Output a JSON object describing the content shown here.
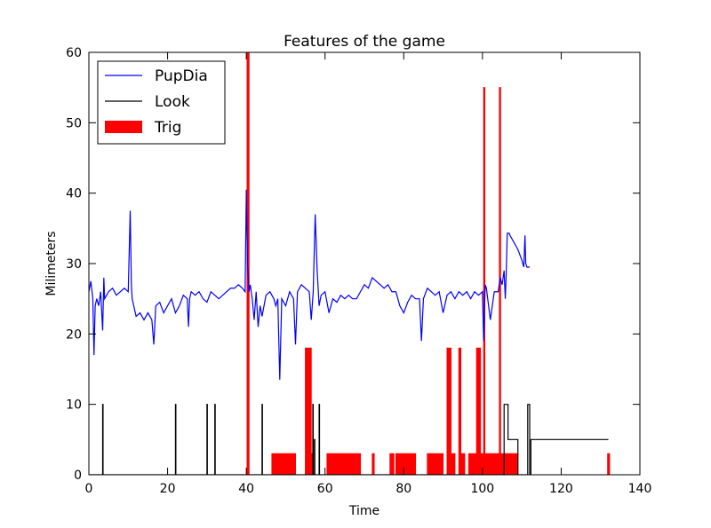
{
  "chart_data": {
    "type": "line",
    "title": "Features of the game",
    "x_label": "Time",
    "y_label": "Milimeters",
    "xlim": [
      0,
      140
    ],
    "ylim": [
      0,
      60
    ],
    "xticks": [
      0,
      20,
      40,
      60,
      80,
      100,
      120,
      140
    ],
    "yticks": [
      0,
      10,
      20,
      30,
      40,
      50,
      60
    ],
    "legend": "upper left",
    "series": [
      {
        "name": "PupDia",
        "color": "#0000ff",
        "style": "line",
        "x": [
          0,
          0.5,
          1,
          1.3,
          1.6,
          2,
          2.5,
          3,
          3.5,
          3.8,
          4,
          5,
          6,
          7,
          8,
          9,
          10,
          10.5,
          10.8,
          11,
          12,
          13,
          14,
          15,
          16,
          16.5,
          17,
          18,
          19,
          20,
          21,
          22,
          23,
          24,
          25,
          25.3,
          25.6,
          26,
          27,
          28,
          29,
          30,
          31,
          32,
          33,
          34,
          35,
          36,
          37,
          38,
          39,
          39.7,
          40,
          40.3,
          40.7,
          41,
          41.5,
          42,
          42.5,
          43,
          43.5,
          44,
          45,
          46,
          47,
          47.5,
          48,
          48.5,
          49,
          50,
          51,
          52,
          52.5,
          53,
          54,
          55,
          56,
          56.5,
          57,
          57.5,
          58,
          58.5,
          59,
          60,
          61,
          62,
          63,
          64,
          65,
          66,
          67,
          68,
          69,
          70,
          71,
          72,
          73,
          74,
          75,
          76,
          77,
          78,
          79,
          80,
          81,
          82,
          83,
          84,
          84.5,
          85,
          86,
          87,
          88,
          89,
          90,
          91,
          92,
          93,
          94,
          95,
          96,
          97,
          98,
          99,
          100,
          100.3,
          100.7,
          101,
          102,
          103,
          104,
          104.5,
          105,
          105.5,
          105.8,
          106,
          106.3,
          106.8,
          107,
          108,
          109,
          110,
          110.5,
          110.8,
          111,
          111.3,
          112
        ],
        "values": [
          26,
          27.5,
          25,
          17,
          24,
          25,
          24,
          26,
          20.5,
          28,
          25,
          26,
          26.5,
          25.5,
          26,
          26.5,
          26,
          37.5,
          27,
          25,
          22.5,
          23,
          22,
          23,
          22,
          18.5,
          24,
          24.5,
          23,
          24,
          25,
          23,
          24,
          25.5,
          25,
          21,
          25,
          26,
          25.5,
          26,
          25,
          24.5,
          26,
          25.5,
          25,
          25.5,
          26,
          26.5,
          26.5,
          27,
          26.5,
          26,
          40.5,
          30,
          26,
          27,
          25,
          22,
          26,
          21,
          24,
          22.5,
          25.5,
          26,
          25,
          24,
          25,
          13.5,
          25,
          24,
          26,
          25,
          18.5,
          26,
          27,
          26.5,
          26,
          22,
          26,
          37,
          29,
          24,
          25.5,
          26,
          23,
          25,
          24.5,
          25.5,
          25,
          25.5,
          25,
          25,
          26,
          27,
          26.5,
          28,
          27.5,
          27,
          26.5,
          27,
          26,
          26,
          24,
          23,
          24.5,
          25.5,
          25,
          25,
          19,
          25,
          26.5,
          26,
          25.5,
          26,
          23,
          25.5,
          26,
          25,
          26,
          25.5,
          26,
          25,
          26,
          25.5,
          26,
          19,
          27,
          26.5,
          22,
          26,
          26,
          28,
          27,
          29,
          25,
          28,
          34.3,
          34.3,
          34,
          33,
          32,
          30.5,
          29.5,
          34,
          30,
          29.5,
          29.5
        ]
      },
      {
        "name": "Look",
        "color": "#000000",
        "style": "line",
        "x": [
          0,
          3.5,
          3.5,
          3.6,
          3.6,
          22,
          22,
          22.1,
          22.1,
          30,
          30,
          30.1,
          30.1,
          32,
          32,
          32.1,
          32.1,
          44,
          44,
          44.1,
          44.1,
          56.9,
          56.9,
          57,
          57,
          57.3,
          57.3,
          57.4,
          57.4,
          58.5,
          58.5,
          58.6,
          58.6,
          105.5,
          105.5,
          106.5,
          106.5,
          109,
          109,
          111.5,
          111.5,
          112,
          112,
          112.3,
          112.3,
          132
        ],
        "values": [
          0,
          0,
          10,
          10,
          0,
          0,
          10,
          10,
          0,
          0,
          10,
          10,
          0,
          0,
          10,
          10,
          0,
          0,
          10,
          10,
          0,
          0,
          10,
          10,
          0,
          0,
          5,
          5,
          0,
          0,
          10,
          10,
          0,
          0,
          10,
          10,
          5,
          5,
          0,
          0,
          10,
          10,
          0,
          0,
          5,
          5
        ]
      },
      {
        "name": "Trig",
        "color": "#ff0000",
        "style": "area",
        "x": [
          0,
          40.2,
          40.2,
          40.7,
          40.7,
          46.5,
          46.5,
          52.5,
          52.5,
          55,
          55,
          56.5,
          56.5,
          57,
          57,
          60.5,
          60.5,
          69,
          69,
          72,
          72,
          72.5,
          72.5,
          76.5,
          76.5,
          77.5,
          77.5,
          78,
          78,
          83,
          83,
          86,
          86,
          90,
          90,
          91,
          91,
          92,
          92,
          93,
          93,
          94,
          94,
          94.5,
          94.5,
          95.5,
          95.5,
          96.5,
          96.5,
          98.5,
          98.5,
          99.5,
          99.5,
          100.3,
          100.3,
          100.6,
          100.6,
          104.3,
          104.3,
          104.6,
          104.6,
          109,
          109,
          131.8,
          131.8,
          132.3,
          132.3
        ],
        "values": [
          0,
          0,
          60,
          60,
          0,
          0,
          3,
          3,
          0,
          0,
          18,
          18,
          3,
          3,
          0,
          0,
          3,
          3,
          0,
          0,
          3,
          3,
          0,
          0,
          3,
          3,
          0,
          0,
          3,
          3,
          0,
          0,
          3,
          3,
          0,
          0,
          18,
          18,
          3,
          3,
          0,
          0,
          18,
          18,
          3,
          3,
          0,
          0,
          3,
          3,
          18,
          18,
          3,
          3,
          55,
          55,
          3,
          3,
          55,
          55,
          3,
          3,
          0,
          0,
          3,
          3,
          0
        ]
      }
    ]
  }
}
